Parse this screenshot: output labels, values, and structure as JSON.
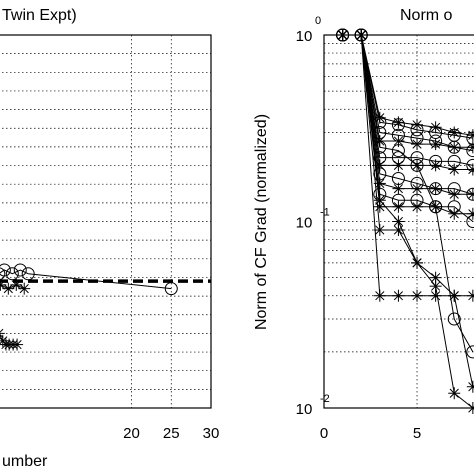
{
  "chart_data": [
    {
      "type": "line",
      "title": "Twin Expt)",
      "xlabel": "umber",
      "ylabel": "",
      "xlim": [
        3.2,
        30
      ],
      "ylim": [
        0,
        1
      ],
      "x_ticks": [
        20,
        25,
        30
      ],
      "x_tick_labels": [
        "20",
        "25",
        "30"
      ],
      "grid": true,
      "series": [
        {
          "marker": "circle",
          "line": "solid",
          "x": [
            3.3,
            4,
            5,
            6,
            7,
            25
          ],
          "values": [
            0.36,
            0.37,
            0.36,
            0.37,
            0.36,
            0.32
          ]
        },
        {
          "marker": "star",
          "line": "solid",
          "x": [
            3.5,
            4.5,
            5.5,
            6.5
          ],
          "values": [
            0.33,
            0.32,
            0.33,
            0.32
          ]
        },
        {
          "marker": "star",
          "line": "solid",
          "x": [
            3.3,
            3.8,
            4.2,
            4.6,
            5.1,
            5.6
          ],
          "values": [
            0.2,
            0.18,
            0.17,
            0.17,
            0.17,
            0.17
          ]
        },
        {
          "marker": "none",
          "line": "dashed",
          "x": [
            3.2,
            30
          ],
          "values": [
            0.34,
            0.34
          ]
        }
      ]
    },
    {
      "type": "line",
      "title": "Norm o",
      "xlabel": "",
      "ylabel": "Norm of CF Grad (normalized)",
      "xlim": [
        0,
        8.6
      ],
      "ylim": [
        0.01,
        1
      ],
      "yscale": "log",
      "x_ticks": [
        0,
        5
      ],
      "x_tick_labels": [
        "0",
        "5"
      ],
      "y_ticks": [
        {
          "base": "10",
          "exp": "-2",
          "value": 0.01
        },
        {
          "base": "10",
          "exp": "-1",
          "value": 0.1
        },
        {
          "base": "10",
          "exp": "",
          "value": 1
        }
      ],
      "corner_label": "0",
      "grid": true,
      "series": [
        {
          "marker": "star",
          "x": [
            1,
            2,
            3,
            4,
            5,
            6,
            7,
            8
          ],
          "values": [
            1,
            1,
            0.36,
            0.34,
            0.33,
            0.32,
            0.3,
            0.29
          ]
        },
        {
          "marker": "circle",
          "x": [
            1,
            2,
            3,
            4,
            5,
            6,
            7,
            8
          ],
          "values": [
            1,
            1,
            0.34,
            0.33,
            0.31,
            0.3,
            0.29,
            0.28
          ]
        },
        {
          "marker": "circle",
          "x": [
            1,
            2,
            3,
            4,
            5,
            6,
            7,
            8
          ],
          "values": [
            1,
            1,
            0.3,
            0.29,
            0.28,
            0.27,
            0.25,
            0.24
          ]
        },
        {
          "marker": "star",
          "x": [
            1,
            2,
            3,
            4,
            5,
            6,
            7,
            8
          ],
          "values": [
            1,
            1,
            0.27,
            0.27,
            0.26,
            0.26,
            0.25,
            0.25
          ]
        },
        {
          "marker": "circle",
          "x": [
            1,
            2,
            3,
            4,
            5,
            6,
            7,
            8
          ],
          "values": [
            1,
            1,
            0.22,
            0.22,
            0.22,
            0.21,
            0.21,
            0.2
          ]
        },
        {
          "marker": "star",
          "x": [
            1,
            2,
            3,
            4,
            5,
            6,
            7,
            8
          ],
          "values": [
            1,
            1,
            0.2,
            0.2,
            0.2,
            0.2,
            0.19,
            0.19
          ]
        },
        {
          "marker": "circle",
          "x": [
            1,
            2,
            3,
            4,
            5,
            6,
            7,
            8
          ],
          "values": [
            1,
            1,
            0.18,
            0.17,
            0.16,
            0.15,
            0.15,
            0.14
          ]
        },
        {
          "marker": "star",
          "x": [
            1,
            2,
            3,
            4,
            5,
            6,
            7,
            8
          ],
          "values": [
            1,
            1,
            0.16,
            0.15,
            0.15,
            0.15,
            0.14,
            0.14
          ]
        },
        {
          "marker": "circle",
          "x": [
            1,
            2,
            3,
            4,
            5,
            6,
            7,
            8
          ],
          "values": [
            1,
            1,
            0.14,
            0.13,
            0.13,
            0.12,
            0.12,
            0.1
          ]
        },
        {
          "marker": "star",
          "x": [
            1,
            2,
            3,
            4,
            5,
            6,
            7,
            8
          ],
          "values": [
            1,
            1,
            0.12,
            0.12,
            0.12,
            0.12,
            0.11,
            0.11
          ]
        },
        {
          "marker": "star",
          "x": [
            1,
            2,
            3,
            4,
            5,
            6,
            7,
            8
          ],
          "values": [
            1,
            1,
            0.04,
            0.04,
            0.04,
            0.04,
            0.04,
            0.04
          ]
        },
        {
          "marker": "star",
          "x": [
            1,
            2,
            3,
            4,
            5,
            6,
            7,
            8
          ],
          "values": [
            1,
            1,
            0.09,
            0.09,
            0.06,
            0.05,
            0.04,
            0.013
          ]
        },
        {
          "marker": "star",
          "x": [
            1,
            2,
            3,
            4,
            5,
            6,
            7,
            8
          ],
          "values": [
            1,
            1,
            0.13,
            0.1,
            0.06,
            0.045,
            0.012,
            0.01
          ]
        },
        {
          "marker": "circle",
          "x": [
            1,
            2,
            3,
            4,
            5,
            6,
            7,
            8
          ],
          "values": [
            1,
            1,
            0.25,
            0.24,
            0.2,
            0.12,
            0.03,
            0.02
          ]
        }
      ]
    }
  ]
}
